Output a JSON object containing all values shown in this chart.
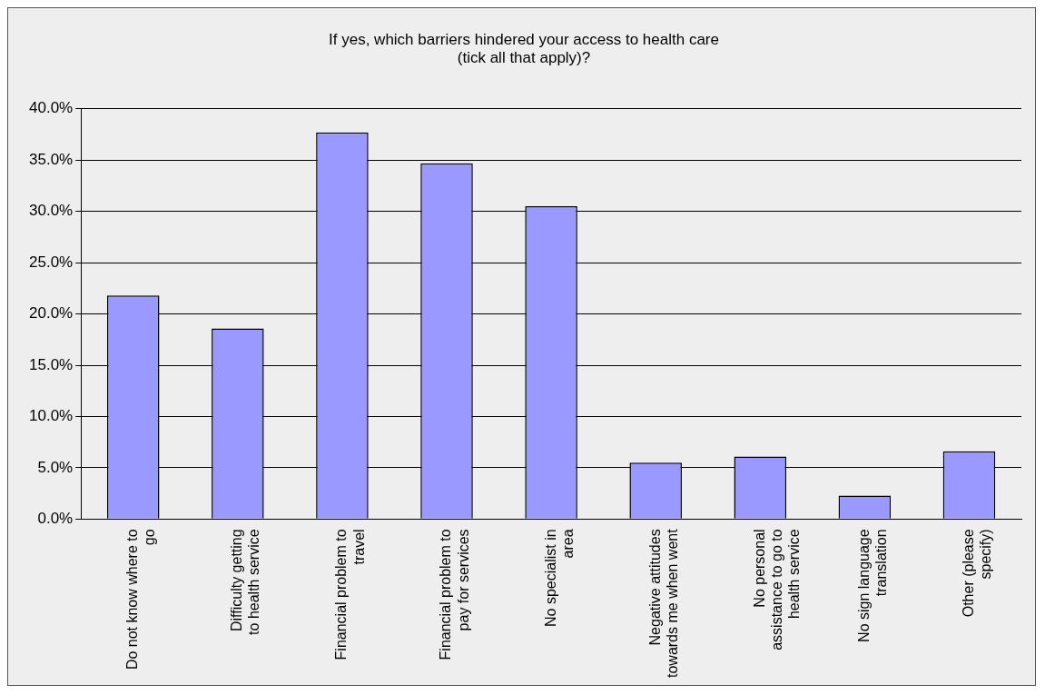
{
  "chart_data": {
    "type": "bar",
    "title": "If yes, which barriers hindered your access to health care\n(tick all that apply)?",
    "categories": [
      "Do not know where to go",
      "Difficulty getting to health service",
      "Financial problem to travel",
      "Financial problem to pay for services",
      "No specialist in area",
      "Negative attitudes towards me when went",
      "No personal assistance to go to health service",
      "No sign language translation",
      "Other (please specify)"
    ],
    "values": [
      21.8,
      18.6,
      37.7,
      34.7,
      30.5,
      5.5,
      6.1,
      2.3,
      6.6
    ],
    "color": "#9999ff",
    "ylim": [
      0,
      40
    ],
    "yticks": [
      {
        "value": 0,
        "label": "0.0%"
      },
      {
        "value": 5,
        "label": "5.0%"
      },
      {
        "value": 10,
        "label": "10.0%"
      },
      {
        "value": 15,
        "label": "15.0%"
      },
      {
        "value": 20,
        "label": "20.0%"
      },
      {
        "value": 25,
        "label": "25.0%"
      },
      {
        "value": 30,
        "label": "30.0%"
      },
      {
        "value": 35,
        "label": "35.0%"
      },
      {
        "value": 40,
        "label": "40.0%"
      }
    ],
    "grid": "y",
    "legend": false
  }
}
